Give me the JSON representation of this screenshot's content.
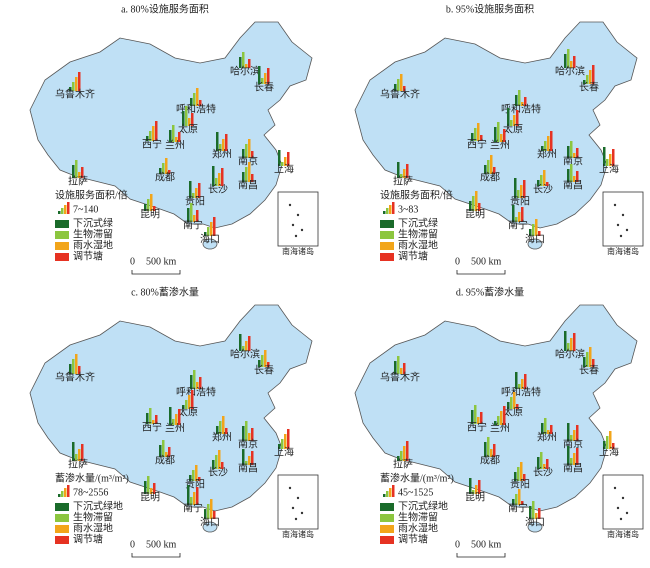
{
  "panels": [
    {
      "title": "a. 80%设施服务面积",
      "legend_title": "设施服务面积/倍",
      "range": "7~140",
      "legend_items": [
        "下沉式绿",
        "生物滞留",
        "雨水湿地",
        "调节塘"
      ]
    },
    {
      "title": "b. 95%设施服务面积",
      "legend_title": "设施服务面积/倍",
      "range": "3~83",
      "legend_items": [
        "下沉式绿",
        "生物滞留",
        "雨水湿地",
        "调节塘"
      ]
    },
    {
      "title": "c. 80%蓄渗水量",
      "legend_title": "蓄渗水量/(m³/m²)",
      "range": "78~2556",
      "legend_items": [
        "下沉式绿地",
        "生物滞留",
        "雨水湿地",
        "调节塘"
      ]
    },
    {
      "title": "d. 95%蓄渗水量",
      "legend_title": "蓄渗水量/(m³/m²)",
      "range": "45~1525",
      "legend_items": [
        "下沉式绿地",
        "生物滞留",
        "雨水湿地",
        "调节塘"
      ]
    }
  ],
  "cities": [
    "乌鲁木齐",
    "哈尔滨",
    "长春",
    "呼和浩特",
    "太原",
    "西宁",
    "兰州",
    "郑州",
    "南京",
    "上海",
    "成都",
    "拉萨",
    "长沙",
    "南昌",
    "贵阳",
    "昆明",
    "南宁",
    "海口"
  ],
  "scale": {
    "zero": "0",
    "label": "500 km"
  },
  "inset_label": "南海诸岛"
}
